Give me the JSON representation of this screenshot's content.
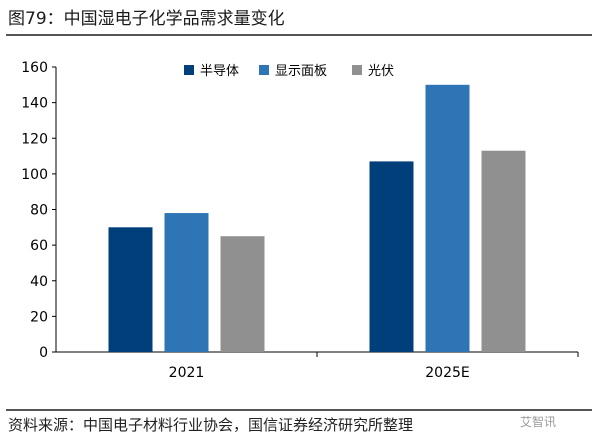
{
  "header": {
    "title": "图79：中国湿电子化学品需求量变化"
  },
  "footer": {
    "source": "资料来源：中国电子材料行业协会，国信证券经济研究所整理",
    "watermark": "艾智讯"
  },
  "chart_data": {
    "type": "bar",
    "categories": [
      "2021",
      "2025E"
    ],
    "series": [
      {
        "name": "半导体",
        "values": [
          70,
          107
        ],
        "color": "#003F7A"
      },
      {
        "name": "显示面板",
        "values": [
          78,
          150
        ],
        "color": "#2E75B6"
      },
      {
        "name": "光伏",
        "values": [
          65,
          113
        ],
        "color": "#909090"
      }
    ],
    "yticks": [
      0,
      20,
      40,
      60,
      80,
      100,
      120,
      140,
      160
    ],
    "ylim": [
      0,
      160
    ],
    "grid": false,
    "legend_position": "top-center",
    "xlabel": "",
    "ylabel": ""
  }
}
